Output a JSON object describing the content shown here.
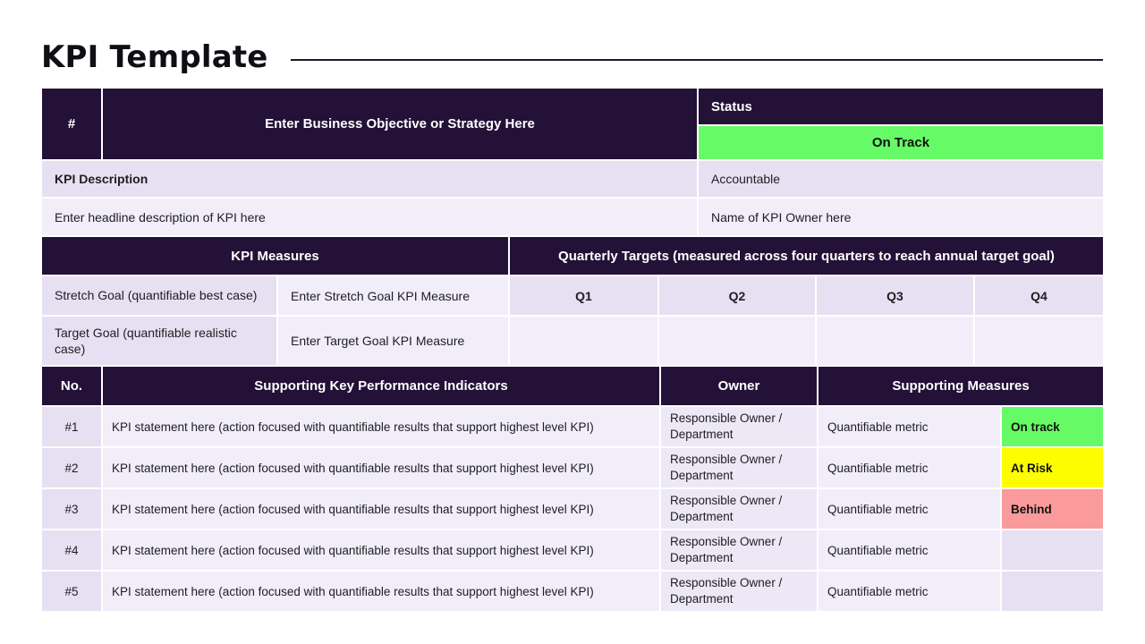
{
  "page": {
    "title": "KPI Template"
  },
  "top": {
    "hash": "#",
    "objective": "Enter Business Objective or Strategy Here",
    "status_label": "Status",
    "status_value": "On Track",
    "kpi_description_label": "KPI Description",
    "accountable_label": "Accountable",
    "kpi_description_value": "Enter headline description of KPI here",
    "accountable_value": "Name of KPI Owner here"
  },
  "measures": {
    "header_left": "KPI Measures",
    "header_right": "Quarterly Targets (measured across four quarters to reach annual target goal)",
    "quarters": [
      "Q1",
      "Q2",
      "Q3",
      "Q4"
    ],
    "rows": [
      {
        "label": "Stretch Goal (quantifiable best case)",
        "measure": "Enter Stretch Goal KPI Measure"
      },
      {
        "label": "Target Goal (quantifiable realistic case)",
        "measure": "Enter Target Goal KPI Measure"
      }
    ]
  },
  "supporting": {
    "headers": {
      "no": "No.",
      "kpi": "Supporting Key Performance Indicators",
      "owner": "Owner",
      "measures": "Supporting Measures"
    },
    "rows": [
      {
        "no": "#1",
        "statement": "KPI statement here (action focused with quantifiable results that support highest level KPI)",
        "owner": "Responsible Owner / Department",
        "metric": "Quantifiable metric",
        "status": "On track",
        "status_color": "green"
      },
      {
        "no": "#2",
        "statement": "KPI statement here (action focused with quantifiable results that support highest level KPI)",
        "owner": "Responsible Owner / Department",
        "metric": "Quantifiable metric",
        "status": "At Risk",
        "status_color": "yellow"
      },
      {
        "no": "#3",
        "statement": "KPI statement here (action focused with quantifiable results that support highest level KPI)",
        "owner": "Responsible Owner / Department",
        "metric": "Quantifiable metric",
        "status": "Behind",
        "status_color": "red"
      },
      {
        "no": "#4",
        "statement": "KPI statement here (action focused with quantifiable results that support highest level KPI)",
        "owner": "Responsible Owner / Department",
        "metric": "Quantifiable metric",
        "status": "",
        "status_color": "none"
      },
      {
        "no": "#5",
        "statement": "KPI statement here (action focused with quantifiable results that support highest level KPI)",
        "owner": "Responsible Owner / Department",
        "metric": "Quantifiable metric",
        "status": "",
        "status_color": "none"
      }
    ]
  },
  "colors": {
    "header_dark": "#241137",
    "lavender_dark": "#E7E0F2",
    "lavender_light": "#F2EEF9",
    "status_green": "#66FB66",
    "status_yellow": "#FDFD00",
    "status_red": "#FB9A9A",
    "gridline": "#FFFFFF"
  }
}
